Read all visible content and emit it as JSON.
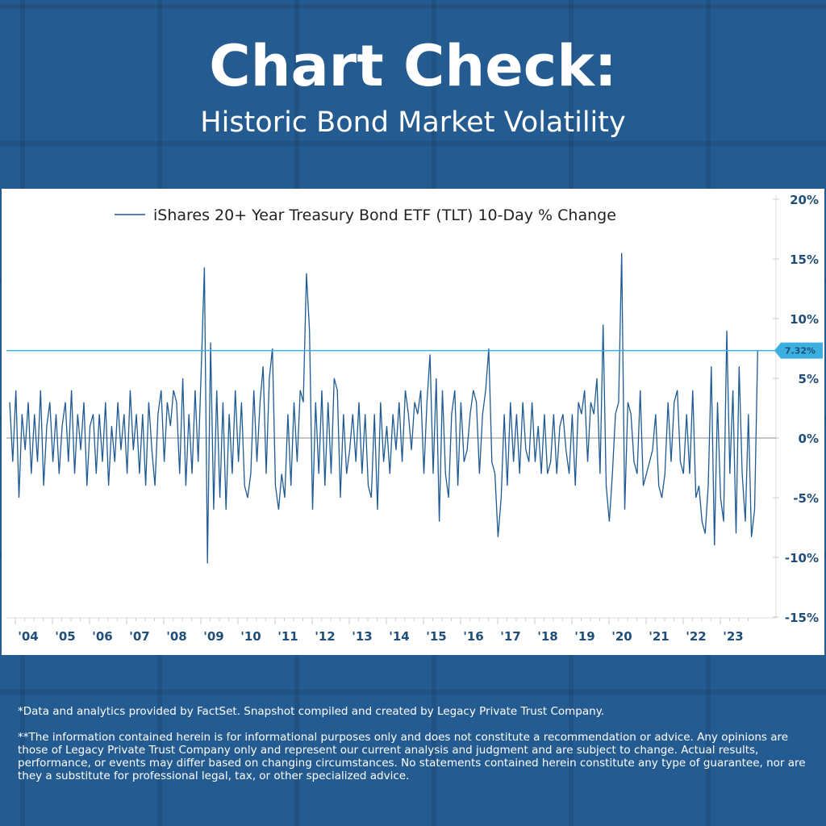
{
  "header": {
    "title": "Chart Check:",
    "subtitle": "Historic Bond Market Volatility"
  },
  "footer": {
    "source": "*Data and analytics provided by FactSet. Snapshot compiled and created by Legacy Private Trust Company.",
    "disclaimer": "**The information contained herein is for informational purposes only and does not constitute a recommendation or advice. Any opinions are those of Legacy Private Trust Company only and represent our current analysis and judgment and are subject to change. Actual results, performance, or events may differ based on changing circumstances. No statements contained herein constitute any type of guarantee, nor are they a substitute for professional legal, tax, or other specialized advice."
  },
  "colors": {
    "background": "#245c92",
    "series": "#1f5a94",
    "reference": "#3bb0e0",
    "axis_text": "#1f4e79"
  },
  "chart_data": {
    "type": "line",
    "legend": "iShares 20+ Year Treasury Bond ETF (TLT) 10-Day % Change",
    "legend_position": "top-left",
    "ylabel": "",
    "xlabel": "",
    "ylim": [
      -15,
      20
    ],
    "yticks": [
      "20%",
      "15%",
      "10%",
      "5%",
      "0%",
      "-5%",
      "-10%",
      "-15%"
    ],
    "ytick_values": [
      20,
      15,
      10,
      5,
      0,
      -5,
      -10,
      -15
    ],
    "xticks": [
      "'04",
      "'05",
      "'06",
      "'07",
      "'08",
      "'09",
      "'10",
      "'11",
      "'12",
      "'13",
      "'14",
      "'15",
      "'16",
      "'17",
      "'18",
      "'19",
      "'20",
      "'21",
      "'22",
      "'23"
    ],
    "xtick_years": [
      2004,
      2005,
      2006,
      2007,
      2008,
      2009,
      2010,
      2011,
      2012,
      2013,
      2014,
      2015,
      2016,
      2017,
      2018,
      2019,
      2020,
      2021,
      2022,
      2023
    ],
    "x_start": 2003.5,
    "x_step": 0.0833,
    "reference_line": {
      "value": 7.32,
      "label": "7.32%"
    },
    "values": [
      3,
      -2,
      4,
      -5,
      2,
      -1,
      3,
      -3,
      2,
      -2,
      4,
      -4,
      1,
      3,
      -2,
      2,
      -3,
      1,
      3,
      -2,
      4,
      -3,
      2,
      -1,
      3,
      -4,
      1,
      2,
      -3,
      2,
      -2,
      3,
      -4,
      1,
      -2,
      3,
      -1,
      2,
      -3,
      4,
      -1,
      2,
      -3,
      2,
      -4,
      3,
      -1,
      -4,
      2,
      4,
      -2,
      3,
      1,
      4,
      3,
      -3,
      5,
      -4,
      2,
      -3,
      4,
      -2,
      6,
      14.3,
      -10.5,
      8,
      -6,
      4,
      -5,
      3,
      -6,
      2,
      -3,
      4,
      -2,
      3,
      -4,
      -5,
      -3,
      4,
      -2,
      3,
      6,
      -3,
      5,
      7.5,
      -4,
      -6,
      -3,
      -5,
      2,
      -4,
      3,
      -2,
      4,
      3,
      13.8,
      9,
      -6,
      3,
      -3,
      4,
      -4,
      3,
      -3,
      5,
      4,
      -5,
      2,
      -3,
      -1,
      2,
      -2,
      3,
      -3,
      2,
      -4,
      -5,
      2,
      -6,
      3,
      -2,
      1,
      -3,
      2,
      -1,
      3,
      -2,
      4,
      2,
      -1,
      3,
      2,
      4,
      -3,
      3,
      7,
      -3,
      5,
      -7,
      4,
      -3,
      -5,
      2,
      4,
      -4,
      3,
      -2,
      -1,
      2,
      4,
      3,
      -3,
      2,
      4,
      7.5,
      -2,
      -3,
      -8.3,
      -5,
      2,
      -4,
      3,
      -2,
      2,
      -3,
      3,
      -1,
      -2,
      3,
      -2,
      1,
      -3,
      2,
      -3,
      -2,
      2,
      -3,
      1,
      2,
      -1,
      -3,
      2,
      -4,
      3,
      2,
      4,
      -2,
      3,
      2,
      5,
      -3,
      9.5,
      -4,
      -7,
      -3,
      2,
      3,
      15.5,
      -6,
      3,
      2,
      -2,
      -3,
      4,
      -4,
      -3,
      -2,
      -1,
      2,
      -4,
      -5,
      -3,
      3,
      -2,
      3,
      4,
      -2,
      -3,
      2,
      -3,
      4,
      -5,
      -4,
      -7,
      -8,
      -4,
      6,
      -9,
      3,
      -5,
      -7,
      9,
      -3,
      4,
      -8,
      6,
      -3,
      -7,
      2,
      -8.3,
      -6,
      7.32
    ]
  }
}
